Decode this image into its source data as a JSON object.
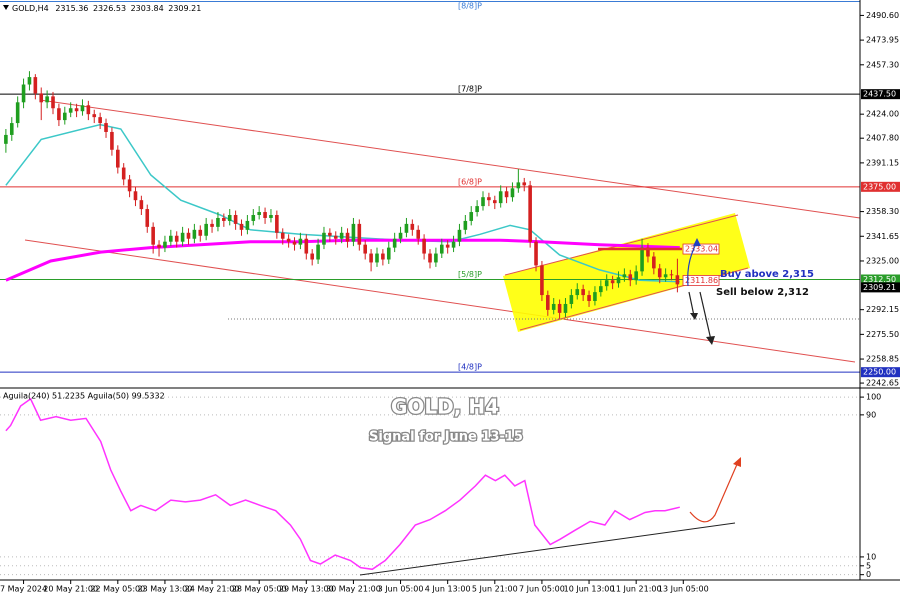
{
  "chart_data": [
    {
      "type": "candlestick",
      "title": "GOLD,H4",
      "up_color": "#1f9e1f",
      "down_color": "#d42020",
      "xlim": [
        -1,
        145
      ],
      "ylim": [
        2240,
        2501
      ],
      "yticks": [
        {
          "value": 2490.6,
          "label": "2490.60"
        },
        2473.95,
        {
          "value": 2457.3,
          "label": "2457.30"
        },
        {
          "value": 2424,
          "label": "2424.00"
        },
        {
          "value": 2407.8,
          "label": "2407.80"
        },
        2391.15,
        {
          "value": 2358.3,
          "label": "2358.30"
        },
        2341.65,
        {
          "value": 2325,
          "label": "2325.00"
        },
        2292.15,
        {
          "value": 2275.5,
          "label": "2275.50"
        },
        2258.85,
        2242.65
      ],
      "xticks": [
        {
          "value": 3,
          "label": "7 May 2024"
        },
        {
          "value": 11,
          "label": "20 May 21:00"
        },
        {
          "value": 19,
          "label": "22 May 05:00"
        },
        {
          "value": 27,
          "label": "23 May 13:00"
        },
        {
          "value": 35,
          "label": "24 May 21:00"
        },
        {
          "value": 43,
          "label": "28 May 05:00"
        },
        {
          "value": 51,
          "label": "29 May 13:00"
        },
        {
          "value": 59,
          "label": "30 May 21:00"
        },
        {
          "value": 67,
          "label": "3 Jun 05:00"
        },
        {
          "value": 75,
          "label": "4 Jun 13:00"
        },
        {
          "value": 83,
          "label": "5 Jun 21:00"
        },
        {
          "value": 91,
          "label": "7 Jun 05:00"
        },
        {
          "value": 99,
          "label": "10 Jun 13:00"
        },
        {
          "value": 107,
          "label": "11 Jun 21:00"
        },
        {
          "value": 115,
          "label": "13 Jun 05:00"
        }
      ],
      "candles": [
        [
          2404,
          2414,
          2398,
          2410
        ],
        [
          2410,
          2422,
          2406,
          2418
        ],
        [
          2418,
          2436,
          2415,
          2432
        ],
        [
          2432,
          2448,
          2428,
          2444
        ],
        [
          2444,
          2453,
          2440,
          2449
        ],
        [
          2449,
          2451,
          2434,
          2438
        ],
        [
          2438,
          2442,
          2420,
          2432
        ],
        [
          2432,
          2440,
          2428,
          2436
        ],
        [
          2436,
          2439,
          2424,
          2428
        ],
        [
          2428,
          2431,
          2416,
          2420
        ],
        [
          2420,
          2429,
          2417,
          2425
        ],
        [
          2425,
          2432,
          2422,
          2428
        ],
        [
          2428,
          2431,
          2422,
          2426
        ],
        [
          2426,
          2434,
          2423,
          2430
        ],
        [
          2430,
          2433,
          2420,
          2424
        ],
        [
          2424,
          2427,
          2418,
          2422
        ],
        [
          2422,
          2425,
          2414,
          2418
        ],
        [
          2418,
          2421,
          2408,
          2412
        ],
        [
          2412,
          2415,
          2396,
          2400
        ],
        [
          2400,
          2403,
          2384,
          2388
        ],
        [
          2388,
          2391,
          2376,
          2380
        ],
        [
          2380,
          2383,
          2368,
          2372
        ],
        [
          2372,
          2375,
          2362,
          2366
        ],
        [
          2366,
          2369,
          2356,
          2360
        ],
        [
          2360,
          2363,
          2344,
          2348
        ],
        [
          2348,
          2351,
          2330,
          2336
        ],
        [
          2336,
          2339,
          2328,
          2334
        ],
        [
          2334,
          2342,
          2331,
          2338
        ],
        [
          2338,
          2346,
          2335,
          2342
        ],
        [
          2342,
          2345,
          2334,
          2338
        ],
        [
          2338,
          2348,
          2335,
          2344
        ],
        [
          2344,
          2347,
          2336,
          2340
        ],
        [
          2340,
          2350,
          2337,
          2346
        ],
        [
          2346,
          2349,
          2338,
          2342
        ],
        [
          2342,
          2354,
          2339,
          2350
        ],
        [
          2350,
          2353,
          2344,
          2348
        ],
        [
          2348,
          2358,
          2345,
          2354
        ],
        [
          2354,
          2357,
          2348,
          2352
        ],
        [
          2352,
          2360,
          2349,
          2356
        ],
        [
          2356,
          2359,
          2346,
          2350
        ],
        [
          2350,
          2353,
          2342,
          2346
        ],
        [
          2346,
          2356,
          2343,
          2352
        ],
        [
          2352,
          2360,
          2349,
          2356
        ],
        [
          2356,
          2362,
          2353,
          2358
        ],
        [
          2358,
          2361,
          2350,
          2354
        ],
        [
          2354,
          2360,
          2351,
          2356
        ],
        [
          2356,
          2359,
          2340,
          2344
        ],
        [
          2344,
          2347,
          2336,
          2340
        ],
        [
          2340,
          2343,
          2334,
          2338
        ],
        [
          2338,
          2341,
          2332,
          2336
        ],
        [
          2336,
          2344,
          2333,
          2340
        ],
        [
          2340,
          2343,
          2326,
          2330
        ],
        [
          2330,
          2333,
          2322,
          2326
        ],
        [
          2326,
          2340,
          2323,
          2336
        ],
        [
          2336,
          2348,
          2333,
          2344
        ],
        [
          2344,
          2347,
          2338,
          2342
        ],
        [
          2342,
          2345,
          2336,
          2340
        ],
        [
          2340,
          2348,
          2337,
          2344
        ],
        [
          2344,
          2347,
          2334,
          2338
        ],
        [
          2338,
          2354,
          2335,
          2350
        ],
        [
          2350,
          2353,
          2332,
          2336
        ],
        [
          2336,
          2339,
          2326,
          2330
        ],
        [
          2330,
          2333,
          2318,
          2324
        ],
        [
          2324,
          2334,
          2321,
          2330
        ],
        [
          2330,
          2333,
          2322,
          2326
        ],
        [
          2326,
          2338,
          2323,
          2334
        ],
        [
          2334,
          2344,
          2331,
          2340
        ],
        [
          2340,
          2348,
          2337,
          2344
        ],
        [
          2344,
          2354,
          2341,
          2350
        ],
        [
          2350,
          2353,
          2342,
          2346
        ],
        [
          2346,
          2349,
          2336,
          2340
        ],
        [
          2340,
          2343,
          2326,
          2330
        ],
        [
          2330,
          2333,
          2320,
          2324
        ],
        [
          2324,
          2334,
          2321,
          2330
        ],
        [
          2330,
          2340,
          2327,
          2336
        ],
        [
          2336,
          2339,
          2330,
          2334
        ],
        [
          2334,
          2342,
          2331,
          2338
        ],
        [
          2338,
          2350,
          2335,
          2346
        ],
        [
          2346,
          2356,
          2343,
          2352
        ],
        [
          2352,
          2362,
          2349,
          2358
        ],
        [
          2358,
          2366,
          2355,
          2362
        ],
        [
          2362,
          2372,
          2359,
          2368
        ],
        [
          2368,
          2371,
          2362,
          2366
        ],
        [
          2366,
          2369,
          2360,
          2364
        ],
        [
          2364,
          2376,
          2361,
          2372
        ],
        [
          2372,
          2375,
          2364,
          2368
        ],
        [
          2368,
          2378,
          2365,
          2374
        ],
        [
          2374,
          2387,
          2371,
          2378
        ],
        [
          2378,
          2381,
          2372,
          2376
        ],
        [
          2376,
          2379,
          2334,
          2338
        ],
        [
          2338,
          2341,
          2318,
          2322
        ],
        [
          2322,
          2325,
          2298,
          2302
        ],
        [
          2302,
          2305,
          2288,
          2292
        ],
        [
          2292,
          2300,
          2289,
          2296
        ],
        [
          2296,
          2299,
          2286,
          2290
        ],
        [
          2290,
          2300,
          2287,
          2296
        ],
        [
          2296,
          2306,
          2293,
          2302
        ],
        [
          2302,
          2310,
          2299,
          2306
        ],
        [
          2306,
          2309,
          2298,
          2302
        ],
        [
          2302,
          2305,
          2294,
          2298
        ],
        [
          2298,
          2308,
          2295,
          2304
        ],
        [
          2304,
          2312,
          2301,
          2308
        ],
        [
          2308,
          2316,
          2305,
          2312
        ],
        [
          2312,
          2315,
          2306,
          2310
        ],
        [
          2310,
          2318,
          2307,
          2314
        ],
        [
          2314,
          2320,
          2311,
          2316
        ],
        [
          2316,
          2319,
          2308,
          2312
        ],
        [
          2312,
          2322,
          2309,
          2318
        ],
        [
          2318,
          2340,
          2315,
          2334
        ],
        [
          2334,
          2337,
          2324,
          2328
        ],
        [
          2328,
          2331,
          2316,
          2320
        ],
        [
          2320,
          2323,
          2310,
          2314
        ],
        [
          2314,
          2320,
          2311,
          2316
        ],
        [
          2316,
          2319,
          2312,
          2315.36
        ],
        [
          2315.36,
          2326.53,
          2303.84,
          2309.21
        ]
      ],
      "overlays": [
        {
          "color": "#3cc8c8",
          "width": 1.5,
          "x": [
            0,
            6,
            16,
            19.5,
            24.6,
            29.7,
            36.4,
            41.5,
            50,
            58.5,
            67,
            75.4,
            80.5,
            85.6,
            89,
            94,
            100.8,
            107.6,
            114.4
          ],
          "values": [
            2376,
            2407,
            2417,
            2414,
            2383,
            2366,
            2356,
            2346,
            2343,
            2341,
            2339,
            2338,
            2343,
            2349,
            2346,
            2329,
            2319,
            2312,
            2311
          ]
        },
        {
          "color": "#ff00ff",
          "width": 3,
          "x": [
            0,
            7.6,
            16.1,
            24.6,
            33,
            41.5,
            50,
            58.5,
            67,
            75.4,
            83.9,
            90.7,
            100.8,
            114.4
          ],
          "values": [
            2312,
            2325,
            2331,
            2334,
            2336,
            2338,
            2338,
            2339,
            2339,
            2339,
            2339,
            2338,
            2336,
            2334
          ]
        }
      ],
      "levels": [
        {
          "name": "[8/8]P",
          "value": 2500,
          "color": "#3a7bd5"
        },
        {
          "name": "[7/8]P",
          "value": 2437.5,
          "label": "2437.50",
          "color": "#000000"
        },
        {
          "name": "[6/8]P",
          "value": 2375,
          "label": "2375.00",
          "color": "#e03030"
        },
        {
          "name": "[5/8]P",
          "value": 2312.5,
          "label": "2312.50",
          "color": "#2a9d2a"
        },
        {
          "name": "[4/8]P",
          "value": 2250,
          "label": "2250.00",
          "color": "#2030c0"
        }
      ],
      "price_marks": [
        {
          "value": 2333.04,
          "color": "#e03030"
        },
        {
          "value": 2311.86,
          "color": "#e03030"
        }
      ],
      "annotations": {
        "headline": "GOLD, H4",
        "signal": "Signal for June 13-15",
        "buy": "Buy above 2,315",
        "sell": "Sell below 2,312"
      }
    },
    {
      "type": "line",
      "title": "Aguila(240) 51.2235  Aguila(50) 99.5332",
      "color": "#ff33ff",
      "xlim": [
        -1,
        145
      ],
      "ylim": [
        -3,
        104
      ],
      "yticks": [
        0,
        5,
        10,
        90,
        100
      ],
      "x": [
        0,
        0.8,
        2.5,
        4.2,
        5.9,
        8.5,
        11,
        13.6,
        16.1,
        17.8,
        19.5,
        21.2,
        22.9,
        25.4,
        28,
        30.5,
        33,
        35.6,
        38.1,
        40.7,
        43.2,
        45.8,
        48.3,
        50,
        51.7,
        53.4,
        55.9,
        58.5,
        60.2,
        62.2,
        64.4,
        66.9,
        69.5,
        72,
        74.6,
        77.1,
        79.7,
        81.4,
        83.1,
        84.7,
        86.4,
        88.1,
        89.8,
        92.4,
        94.1,
        96.6,
        99.2,
        101.7,
        103.4,
        105.9,
        108.5,
        110.2,
        111.9,
        114.4
      ],
      "values": [
        81,
        84,
        95,
        99,
        87,
        89,
        87,
        88,
        75,
        59,
        47,
        36,
        39,
        36,
        42,
        41,
        42,
        45,
        39,
        42,
        39,
        36,
        28,
        20,
        8,
        6,
        11,
        8,
        4,
        3,
        8,
        17,
        28,
        31,
        36,
        42,
        50,
        56,
        53,
        56,
        50,
        53,
        28,
        17,
        20,
        25,
        30,
        28,
        36,
        31,
        35,
        36,
        36,
        38
      ]
    }
  ]
}
